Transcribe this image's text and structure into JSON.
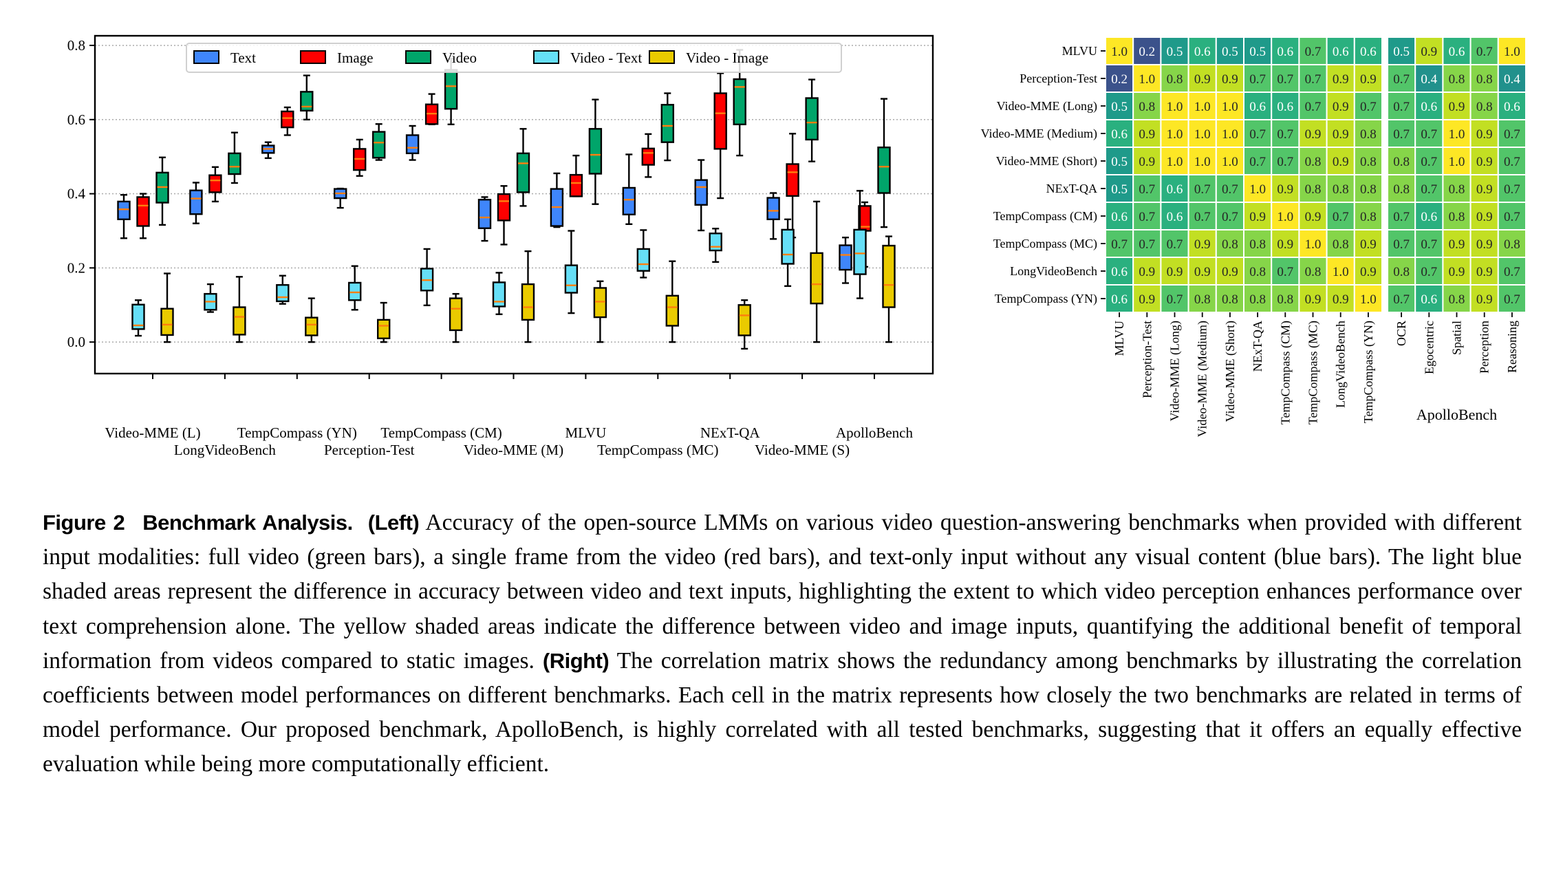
{
  "chart_data": [
    {
      "type": "box",
      "title": "",
      "xlabel": "",
      "ylabel": "",
      "ylim": [
        -0.085,
        0.826
      ],
      "yticks": [
        0.0,
        0.2,
        0.4,
        0.6,
        0.8
      ],
      "ytick_labels": [
        "0.0",
        "0.2",
        "0.4",
        "0.6",
        "0.8"
      ],
      "grid": "horizontal dotted",
      "legend_position": "top-center",
      "categories": [
        "Video-MME (L)",
        "LongVideoBench",
        "TempCompass (YN)",
        "Perception-Test",
        "TempCompass (CM)",
        "Video-MME (M)",
        "MLVU",
        "TempCompass (MC)",
        "NExT-QA",
        "Video-MME (S)",
        "ApolloBench"
      ],
      "series": [
        {
          "name": "Text",
          "color": "#3f86fb",
          "boxes": [
            {
              "whislo": 0.28,
              "q1": 0.331,
              "med": 0.358,
              "q3": 0.379,
              "whishi": 0.397
            },
            {
              "whislo": 0.32,
              "q1": 0.345,
              "med": 0.387,
              "q3": 0.409,
              "whishi": 0.43
            },
            {
              "whislo": 0.496,
              "q1": 0.51,
              "med": 0.521,
              "q3": 0.53,
              "whishi": 0.539
            },
            {
              "whislo": 0.362,
              "q1": 0.388,
              "med": 0.401,
              "q3": 0.413,
              "whishi": 0.414
            },
            {
              "whislo": 0.491,
              "q1": 0.509,
              "med": 0.524,
              "q3": 0.558,
              "whishi": 0.583
            },
            {
              "whislo": 0.273,
              "q1": 0.307,
              "med": 0.336,
              "q3": 0.384,
              "whishi": 0.391
            },
            {
              "whislo": 0.31,
              "q1": 0.313,
              "med": 0.364,
              "q3": 0.413,
              "whishi": 0.455
            },
            {
              "whislo": 0.318,
              "q1": 0.344,
              "med": 0.384,
              "q3": 0.416,
              "whishi": 0.506
            },
            {
              "whislo": 0.301,
              "q1": 0.37,
              "med": 0.418,
              "q3": 0.437,
              "whishi": 0.491
            },
            {
              "whislo": 0.278,
              "q1": 0.331,
              "med": 0.354,
              "q3": 0.389,
              "whishi": 0.402
            },
            {
              "whislo": 0.159,
              "q1": 0.195,
              "med": 0.235,
              "q3": 0.261,
              "whishi": 0.282
            }
          ]
        },
        {
          "name": "Image",
          "color": "#fe0000",
          "boxes": [
            {
              "whislo": 0.28,
              "q1": 0.313,
              "med": 0.368,
              "q3": 0.391,
              "whishi": 0.4
            },
            {
              "whislo": 0.379,
              "q1": 0.404,
              "med": 0.436,
              "q3": 0.45,
              "whishi": 0.472
            },
            {
              "whislo": 0.558,
              "q1": 0.579,
              "med": 0.604,
              "q3": 0.622,
              "whishi": 0.633
            },
            {
              "whislo": 0.448,
              "q1": 0.464,
              "med": 0.494,
              "q3": 0.521,
              "whishi": 0.546
            },
            {
              "whislo": 0.587,
              "q1": 0.588,
              "med": 0.616,
              "q3": 0.641,
              "whishi": 0.669
            },
            {
              "whislo": 0.263,
              "q1": 0.328,
              "med": 0.38,
              "q3": 0.399,
              "whishi": 0.421
            },
            {
              "whislo": 0.393,
              "q1": 0.393,
              "med": 0.429,
              "q3": 0.451,
              "whishi": 0.503
            },
            {
              "whislo": 0.445,
              "q1": 0.478,
              "med": 0.51,
              "q3": 0.522,
              "whishi": 0.561
            },
            {
              "whislo": 0.388,
              "q1": 0.521,
              "med": 0.617,
              "q3": 0.671,
              "whishi": 0.725
            },
            {
              "whislo": 0.282,
              "q1": 0.394,
              "med": 0.458,
              "q3": 0.48,
              "whishi": 0.562
            },
            {
              "whislo": 0.203,
              "q1": 0.3,
              "med": 0.311,
              "q3": 0.367,
              "whishi": 0.377
            }
          ]
        },
        {
          "name": "Video",
          "color": "#00a56a",
          "boxes": [
            {
              "whislo": 0.316,
              "q1": 0.376,
              "med": 0.418,
              "q3": 0.457,
              "whishi": 0.498
            },
            {
              "whislo": 0.429,
              "q1": 0.453,
              "med": 0.473,
              "q3": 0.509,
              "whishi": 0.565
            },
            {
              "whislo": 0.6,
              "q1": 0.624,
              "med": 0.635,
              "q3": 0.675,
              "whishi": 0.719
            },
            {
              "whislo": 0.491,
              "q1": 0.497,
              "med": 0.538,
              "q3": 0.567,
              "whishi": 0.588
            },
            {
              "whislo": 0.587,
              "q1": 0.629,
              "med": 0.69,
              "q3": 0.734,
              "whishi": 0.764
            },
            {
              "whislo": 0.367,
              "q1": 0.404,
              "med": 0.482,
              "q3": 0.509,
              "whishi": 0.575
            },
            {
              "whislo": 0.372,
              "q1": 0.454,
              "med": 0.505,
              "q3": 0.575,
              "whishi": 0.654
            },
            {
              "whislo": 0.49,
              "q1": 0.539,
              "med": 0.583,
              "q3": 0.64,
              "whishi": 0.671
            },
            {
              "whislo": 0.503,
              "q1": 0.587,
              "med": 0.688,
              "q3": 0.709,
              "whishi": 0.788
            },
            {
              "whislo": 0.487,
              "q1": 0.546,
              "med": 0.592,
              "q3": 0.658,
              "whishi": 0.708
            },
            {
              "whislo": 0.31,
              "q1": 0.402,
              "med": 0.473,
              "q3": 0.525,
              "whishi": 0.656
            }
          ]
        },
        {
          "name": "Video - Text",
          "color": "#66dff7",
          "boxes": [
            {
              "whislo": 0.017,
              "q1": 0.035,
              "med": 0.045,
              "q3": 0.101,
              "whishi": 0.113
            },
            {
              "whislo": 0.081,
              "q1": 0.087,
              "med": 0.109,
              "q3": 0.13,
              "whishi": 0.156
            },
            {
              "whislo": 0.103,
              "q1": 0.11,
              "med": 0.121,
              "q3": 0.154,
              "whishi": 0.179
            },
            {
              "whislo": 0.087,
              "q1": 0.113,
              "med": 0.134,
              "q3": 0.16,
              "whishi": 0.205
            },
            {
              "whislo": 0.099,
              "q1": 0.139,
              "med": 0.167,
              "q3": 0.198,
              "whishi": 0.251
            },
            {
              "whislo": 0.075,
              "q1": 0.096,
              "med": 0.109,
              "q3": 0.161,
              "whishi": 0.187
            },
            {
              "whislo": 0.078,
              "q1": 0.133,
              "med": 0.153,
              "q3": 0.207,
              "whishi": 0.3
            },
            {
              "whislo": 0.174,
              "q1": 0.192,
              "med": 0.21,
              "q3": 0.251,
              "whishi": 0.302
            },
            {
              "whislo": 0.216,
              "q1": 0.247,
              "med": 0.257,
              "q3": 0.293,
              "whishi": 0.306
            },
            {
              "whislo": 0.151,
              "q1": 0.211,
              "med": 0.236,
              "q3": 0.303,
              "whishi": 0.331
            },
            {
              "whislo": 0.118,
              "q1": 0.183,
              "med": 0.239,
              "q3": 0.303,
              "whishi": 0.408
            }
          ]
        },
        {
          "name": "Video - Image",
          "color": "#eacb00",
          "boxes": [
            {
              "whislo": 0.0,
              "q1": 0.019,
              "med": 0.047,
              "q3": 0.09,
              "whishi": 0.185
            },
            {
              "whislo": 0.0,
              "q1": 0.02,
              "med": 0.068,
              "q3": 0.094,
              "whishi": 0.176
            },
            {
              "whislo": 0.0,
              "q1": 0.018,
              "med": 0.047,
              "q3": 0.066,
              "whishi": 0.118
            },
            {
              "whislo": 0.0,
              "q1": 0.01,
              "med": 0.044,
              "q3": 0.06,
              "whishi": 0.106
            },
            {
              "whislo": 0.0,
              "q1": 0.032,
              "med": 0.09,
              "q3": 0.118,
              "whishi": 0.13
            },
            {
              "whislo": 0.0,
              "q1": 0.06,
              "med": 0.094,
              "q3": 0.156,
              "whishi": 0.245
            },
            {
              "whislo": 0.0,
              "q1": 0.067,
              "med": 0.109,
              "q3": 0.146,
              "whishi": 0.164
            },
            {
              "whislo": 0.0,
              "q1": 0.044,
              "med": 0.094,
              "q3": 0.125,
              "whishi": 0.218
            },
            {
              "whislo": -0.018,
              "q1": 0.018,
              "med": 0.072,
              "q3": 0.1,
              "whishi": 0.113
            },
            {
              "whislo": 0.0,
              "q1": 0.104,
              "med": 0.156,
              "q3": 0.24,
              "whishi": 0.379
            },
            {
              "whislo": 0.0,
              "q1": 0.094,
              "med": 0.154,
              "q3": 0.26,
              "whishi": 0.285
            }
          ]
        }
      ],
      "median_color": "#ff7f0e"
    },
    {
      "type": "heatmap",
      "title": "",
      "colormap": "viridis",
      "value_range": [
        0.0,
        1.0
      ],
      "row_labels": [
        "MLVU",
        "Perception-Test",
        "Video-MME (Long)",
        "Video-MME (Medium)",
        "Video-MME (Short)",
        "NExT-QA",
        "TempCompass (CM)",
        "TempCompass (MC)",
        "LongVideoBench",
        "TempCompass (YN)"
      ],
      "col_labels": [
        "MLVU",
        "Perception-Test",
        "Video-MME (Long)",
        "Video-MME (Medium)",
        "Video-MME (Short)",
        "NExT-QA",
        "TempCompass (CM)",
        "TempCompass (MC)",
        "LongVideoBench",
        "TempCompass (YN)"
      ],
      "group_col_labels": [
        "OCR",
        "Egocentric",
        "Spatial",
        "Perception",
        "Reasoning"
      ],
      "group_label": "ApolloBench",
      "values": [
        [
          1.0,
          0.2,
          0.5,
          0.6,
          0.5,
          0.5,
          0.6,
          0.7,
          0.6,
          0.6
        ],
        [
          0.2,
          1.0,
          0.8,
          0.9,
          0.9,
          0.7,
          0.7,
          0.7,
          0.9,
          0.9
        ],
        [
          0.5,
          0.8,
          1.0,
          1.0,
          1.0,
          0.6,
          0.6,
          0.7,
          0.9,
          0.7
        ],
        [
          0.6,
          0.9,
          1.0,
          1.0,
          1.0,
          0.7,
          0.7,
          0.9,
          0.9,
          0.8
        ],
        [
          0.5,
          0.9,
          1.0,
          1.0,
          1.0,
          0.7,
          0.7,
          0.8,
          0.9,
          0.8
        ],
        [
          0.5,
          0.7,
          0.6,
          0.7,
          0.7,
          1.0,
          0.9,
          0.8,
          0.8,
          0.8
        ],
        [
          0.6,
          0.7,
          0.6,
          0.7,
          0.7,
          0.9,
          1.0,
          0.9,
          0.7,
          0.8
        ],
        [
          0.7,
          0.7,
          0.7,
          0.9,
          0.8,
          0.8,
          0.9,
          1.0,
          0.8,
          0.9
        ],
        [
          0.6,
          0.9,
          0.9,
          0.9,
          0.9,
          0.8,
          0.7,
          0.8,
          1.0,
          0.9
        ],
        [
          0.6,
          0.9,
          0.7,
          0.8,
          0.8,
          0.8,
          0.8,
          0.9,
          0.9,
          1.0
        ]
      ],
      "group_values": [
        [
          0.5,
          0.9,
          0.6,
          0.7,
          1.0
        ],
        [
          0.7,
          0.4,
          0.8,
          0.8,
          0.4
        ],
        [
          0.7,
          0.6,
          0.9,
          0.8,
          0.6
        ],
        [
          0.7,
          0.7,
          1.0,
          0.9,
          0.7
        ],
        [
          0.8,
          0.7,
          1.0,
          0.9,
          0.7
        ],
        [
          0.8,
          0.7,
          0.8,
          0.9,
          0.7
        ],
        [
          0.7,
          0.6,
          0.8,
          0.9,
          0.7
        ],
        [
          0.7,
          0.7,
          0.9,
          0.9,
          0.8
        ],
        [
          0.8,
          0.7,
          0.9,
          0.9,
          0.7
        ],
        [
          0.7,
          0.6,
          0.8,
          0.9,
          0.7
        ]
      ]
    }
  ],
  "caption": {
    "figure_label": "Figure 2",
    "title": "Benchmark Analysis.",
    "left_label": "(Left)",
    "left_text": "Accuracy of the open-source LMMs on various video question-answering benchmarks when provided with different input modalities: full video (green bars), a single frame from the video (red bars), and text-only input without any visual content (blue bars). The light blue shaded areas represent the difference in accuracy between video and text inputs, highlighting the extent to which video perception enhances performance over text comprehension alone. The yellow shaded areas indicate the difference between video and image inputs, quantifying the additional benefit of temporal information from videos compared to static images.",
    "right_label": "(Right)",
    "right_text": "The correlation matrix shows the redundancy among benchmarks by illustrating the correlation coefficients between model performances on different benchmarks. Each cell in the matrix represents how closely the two benchmarks are related in terms of model performance. Our proposed benchmark, ApolloBench, is highly correlated with all tested benchmarks, suggesting that it offers an equally effective evaluation while being more computationally efficient."
  }
}
